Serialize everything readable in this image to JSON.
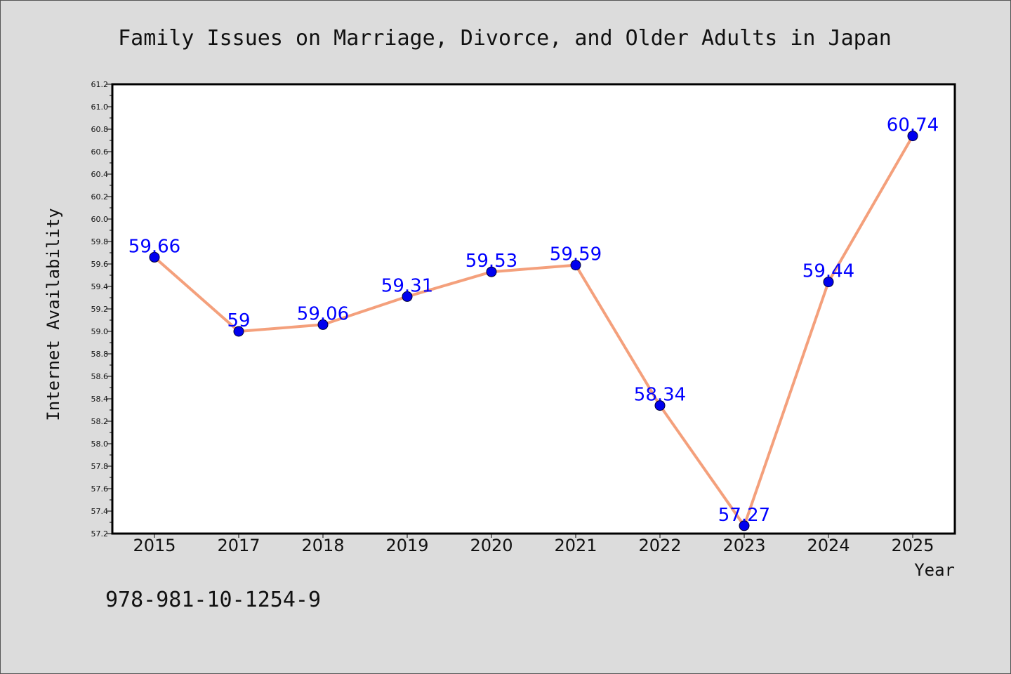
{
  "chart_data": {
    "type": "line",
    "title": "Family Issues on Marriage, Divorce, and Older Adults in Japan",
    "xlabel": "Year",
    "ylabel": "Internet Availability",
    "categories": [
      "2015",
      "2017",
      "2018",
      "2019",
      "2020",
      "2021",
      "2022",
      "2023",
      "2024",
      "2025"
    ],
    "series": [
      {
        "values": [
          59.66,
          59.0,
          59.06,
          59.31,
          59.53,
          59.59,
          58.34,
          57.27,
          59.44,
          60.74
        ],
        "data_labels": [
          "59.66",
          "59",
          "59.06",
          "59.31",
          "59.53",
          "59.59",
          "58.34",
          "57.27",
          "59.44",
          "60.74"
        ]
      }
    ],
    "ylim": [
      57.2,
      61.2
    ],
    "yticks": [
      "57.2",
      "57.4",
      "57.6",
      "57.8",
      "58.0",
      "58.2",
      "58.4",
      "58.6",
      "58.8",
      "59.0",
      "59.2",
      "59.4",
      "59.6",
      "59.8",
      "60.0",
      "60.2",
      "60.4",
      "60.6",
      "60.8",
      "61.0",
      "61.2"
    ],
    "grid": false,
    "line_color": "#f4a07c",
    "marker_color": "#0000ee",
    "label_color": "#0000ff"
  },
  "annotation": {
    "isbn": "978-981-10-1254-9"
  }
}
